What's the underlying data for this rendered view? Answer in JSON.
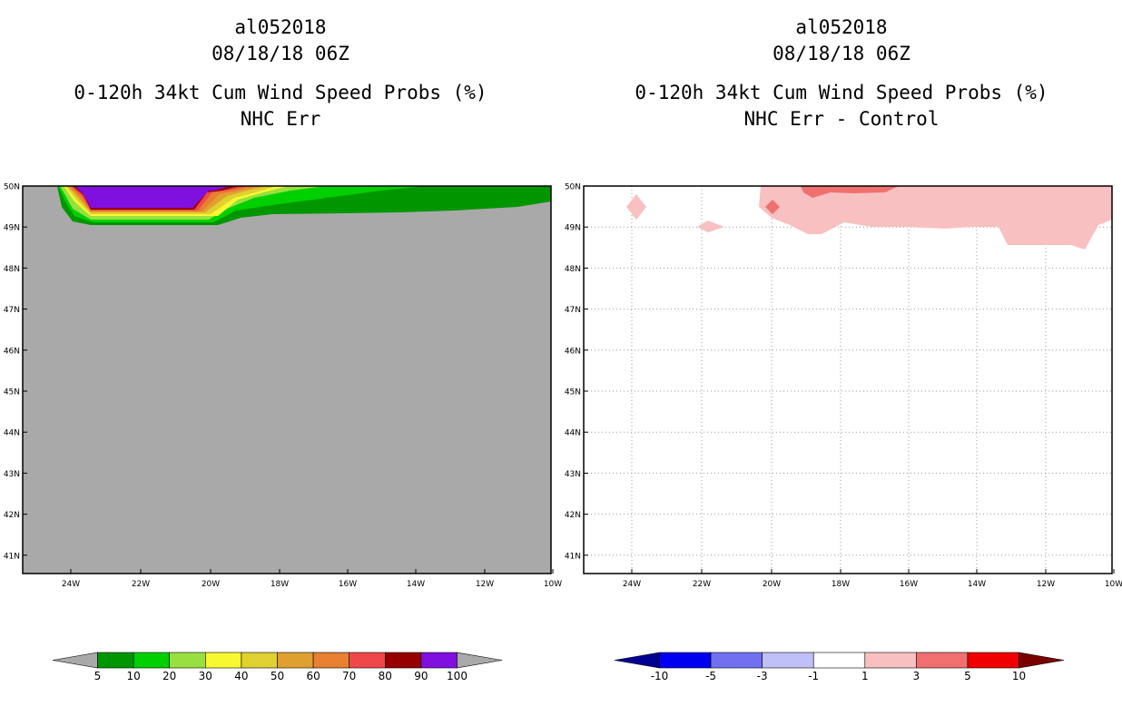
{
  "left_panel": {
    "title_lines": [
      "al052018",
      "08/18/18 06Z",
      "0-120h 34kt Cum Wind Speed Probs (%)",
      "NHC Err"
    ],
    "lat_labels": [
      "50N",
      "49N",
      "48N",
      "47N",
      "46N",
      "45N",
      "44N",
      "43N",
      "42N",
      "41N"
    ],
    "lon_labels": [
      "24W",
      "22W",
      "20W",
      "18W",
      "16W",
      "14W",
      "12W",
      "10W"
    ],
    "background_color": "#a9a9a9",
    "colorbar": {
      "labels": [
        "5",
        "10",
        "20",
        "30",
        "40",
        "50",
        "60",
        "70",
        "80",
        "90",
        "100"
      ],
      "colors": [
        "#009600",
        "#00d000",
        "#98e040",
        "#f8f830",
        "#e0d030",
        "#e0a030",
        "#e88030",
        "#f04848",
        "#960000",
        "#8010e0"
      ],
      "underflow_color": "#a9a9a9",
      "overflow_color": "#a9a9a9"
    }
  },
  "right_panel": {
    "title_lines": [
      "al052018",
      "08/18/18 06Z",
      "0-120h 34kt Cum Wind Speed Probs (%)",
      "NHC Err - Control"
    ],
    "lat_labels": [
      "50N",
      "49N",
      "48N",
      "47N",
      "46N",
      "45N",
      "44N",
      "43N",
      "42N",
      "41N"
    ],
    "lon_labels": [
      "24W",
      "22W",
      "20W",
      "18W",
      "16W",
      "14W",
      "12W",
      "10W"
    ],
    "colorbar": {
      "labels": [
        "-10",
        "-5",
        "-3",
        "-1",
        "1",
        "3",
        "5",
        "10"
      ],
      "colors": [
        "#0000f0",
        "#7070f0",
        "#c0c0f8",
        "#ffffff",
        "#f8c0c0",
        "#f07070",
        "#f00000"
      ],
      "underflow_color": "#000090",
      "overflow_color": "#7a0000"
    }
  }
}
